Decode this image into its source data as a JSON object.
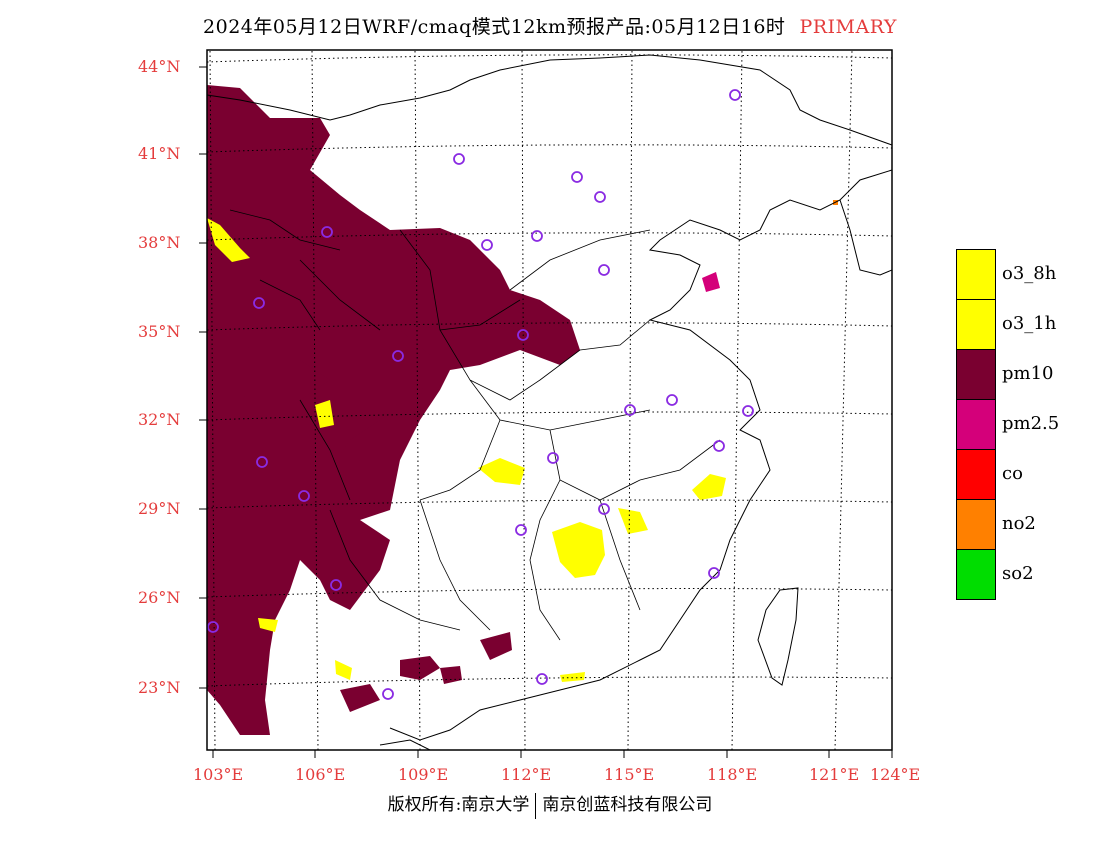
{
  "title": {
    "text": "2024年05月12日WRF/cmaq模式12km预报产品:05月12日16时",
    "tag": "PRIMARY"
  },
  "axes": {
    "lat_labels": [
      "44°N",
      "41°N",
      "38°N",
      "35°N",
      "32°N",
      "29°N",
      "26°N",
      "23°N"
    ],
    "lon_labels": [
      "103°E",
      "106°E",
      "109°E",
      "112°E",
      "115°E",
      "118°E",
      "121°E",
      "124°E"
    ]
  },
  "legend": [
    {
      "label": "o3_8h",
      "color": "#ffff00"
    },
    {
      "label": "o3_1h",
      "color": "#ffff00"
    },
    {
      "label": "pm10",
      "color": "#7a0030"
    },
    {
      "label": "pm2.5",
      "color": "#d4007a"
    },
    {
      "label": "co",
      "color": "#ff0000"
    },
    {
      "label": "no2",
      "color": "#ff8000"
    },
    {
      "label": "so2",
      "color": "#00dd00"
    }
  ],
  "colors": {
    "axis_label": "#e43c3c",
    "pm10": "#7a0030",
    "o3": "#ffff00",
    "pm25": "#d4007a",
    "station": "#8a2be2"
  },
  "footer": {
    "left": "版权所有:南京大学",
    "right": "南京创蓝科技有限公司"
  }
}
